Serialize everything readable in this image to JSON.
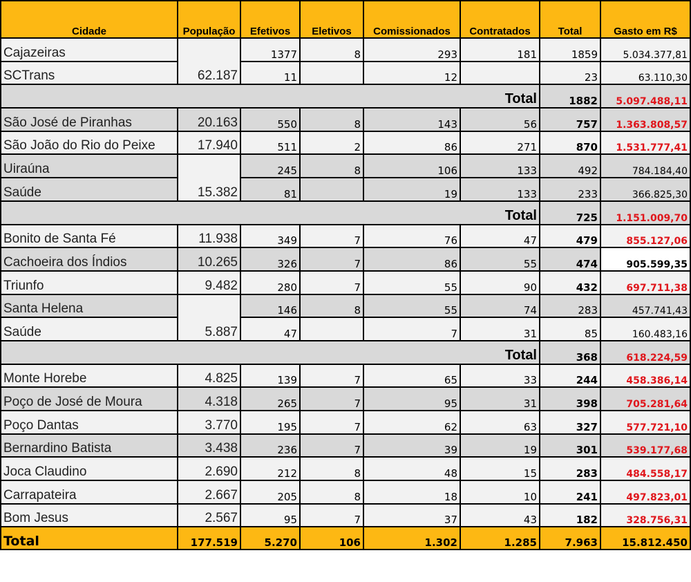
{
  "table": {
    "header": [
      "Cidade",
      "População",
      "Efetivos",
      "Eletivos",
      "Comissionados",
      "Contratados",
      "Total",
      "Gasto em R$"
    ],
    "sections": [
      {
        "populacao": "62.187",
        "rows": [
          {
            "cidade": "Cajazeiras",
            "efetivos": "1377",
            "eletivos": "8",
            "comissionados": "293",
            "contratados": "181",
            "total": "1859",
            "gasto": "5.034.377,81"
          },
          {
            "cidade": "SCTrans",
            "efetivos": "11",
            "comissionados": "12",
            "total": "23",
            "gasto": "63.110,30"
          }
        ]
      },
      {
        "label": "Total",
        "total": "1882",
        "gasto": "5.097.488,11"
      },
      {
        "populacao": "20.163",
        "rows": [
          {
            "cidade": "São José de Piranhas",
            "efetivos": "550",
            "eletivos": "8",
            "comissionados": "143",
            "contratados": "56",
            "total": "757",
            "gasto": "1.363.808,57"
          }
        ]
      },
      {
        "populacao": "17.940",
        "rows": [
          {
            "cidade": "São João do Rio do Peixe",
            "efetivos": "511",
            "eletivos": "2",
            "comissionados": "86",
            "contratados": "271",
            "total": "870",
            "gasto": "1.531.777,41"
          }
        ]
      },
      {
        "populacao": "15.382",
        "rows": [
          {
            "cidade": "Uiraúna",
            "efetivos": "245",
            "eletivos": "8",
            "comissionados": "106",
            "contratados": "133",
            "total": "492",
            "gasto": "784.184,40"
          },
          {
            "cidade": "Saúde",
            "efetivos": "81",
            "comissionados": "19",
            "contratados": "133",
            "total": "233",
            "gasto": "366.825,30"
          }
        ]
      },
      {
        "label": "Total",
        "total": "725",
        "gasto": "1.151.009,70"
      },
      {
        "populacao": "11.938",
        "rows": [
          {
            "cidade": "Bonito de Santa Fé",
            "efetivos": "349",
            "eletivos": "7",
            "comissionados": "76",
            "contratados": "47",
            "total": "479",
            "gasto": "855.127,06"
          }
        ]
      },
      {
        "populacao": "10.265",
        "rows": [
          {
            "cidade": "Cachoeira dos Índios",
            "efetivos": "326",
            "eletivos": "7",
            "comissionados": "86",
            "contratados": "55",
            "total": "474",
            "gasto": "905.599,35"
          }
        ]
      },
      {
        "populacao": "9.482",
        "rows": [
          {
            "cidade": "Triunfo",
            "efetivos": "280",
            "eletivos": "7",
            "comissionados": "55",
            "contratados": "90",
            "total": "432",
            "gasto": "697.711,38"
          }
        ]
      },
      {
        "populacao": "5.887",
        "rows": [
          {
            "cidade": "Santa Helena",
            "efetivos": "146",
            "eletivos": "8",
            "comissionados": "55",
            "contratados": "74",
            "total": "283",
            "gasto": "457.741,43"
          },
          {
            "cidade": "Saúde",
            "efetivos": "47",
            "comissionados": "7",
            "contratados": "31",
            "total": "85",
            "gasto": "160.483,16"
          }
        ]
      },
      {
        "label": "Total",
        "total": "368",
        "gasto": "618.224,59"
      },
      {
        "populacao": "4.825",
        "rows": [
          {
            "cidade": "Monte Horebe",
            "efetivos": "139",
            "eletivos": "7",
            "comissionados": "65",
            "contratados": "33",
            "total": "244",
            "gasto": "458.386,14"
          }
        ]
      },
      {
        "populacao": "4.318",
        "rows": [
          {
            "cidade": "Poço de José de Moura",
            "efetivos": "265",
            "eletivos": "7",
            "comissionados": "95",
            "contratados": "31",
            "total": "398",
            "gasto": "705.281,64"
          }
        ]
      },
      {
        "populacao": "3.770",
        "rows": [
          {
            "cidade": "Poço Dantas",
            "efetivos": "195",
            "eletivos": "7",
            "comissionados": "62",
            "contratados": "63",
            "total": "327",
            "gasto": "577.721,10"
          }
        ]
      },
      {
        "populacao": "3.438",
        "rows": [
          {
            "cidade": "Bernardino Batista",
            "efetivos": "236",
            "eletivos": "7",
            "comissionados": "39",
            "contratados": "19",
            "total": "301",
            "gasto": "539.177,68"
          }
        ]
      },
      {
        "populacao": "2.690",
        "rows": [
          {
            "cidade": "Joca Claudino",
            "efetivos": "212",
            "eletivos": "8",
            "comissionados": "48",
            "contratados": "15",
            "total": "283",
            "gasto": "484.558,17"
          }
        ]
      },
      {
        "populacao": "2.667",
        "rows": [
          {
            "cidade": "Carrapateira",
            "efetivos": "205",
            "eletivos": "8",
            "comissionados": "18",
            "contratados": "10",
            "total": "241",
            "gasto": "497.823,01"
          }
        ]
      },
      {
        "populacao": "2.567",
        "rows": [
          {
            "cidade": "Bom Jesus",
            "efetivos": "95",
            "eletivos": "7",
            "comissionados": "37",
            "contratados": "43",
            "total": "182",
            "gasto": "328.756,31"
          }
        ]
      }
    ],
    "footer": [
      "Total",
      "177.519",
      "5.270",
      "106",
      "1.302",
      "1.285",
      "7.963",
      "15.812.450"
    ]
  }
}
